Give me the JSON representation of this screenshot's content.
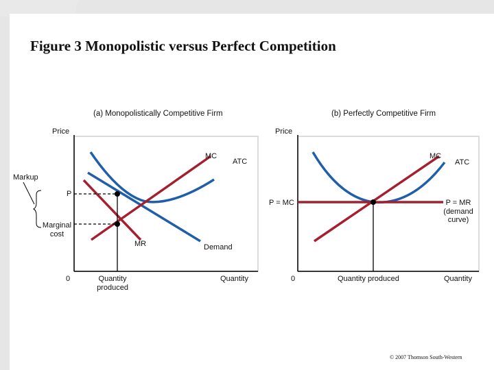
{
  "title": "Figure 3 Monopolistic versus Perfect Competition",
  "panel_a": {
    "heading": "(a) Monopolistically Competitive Firm",
    "y_axis_label": "Price",
    "x_axis_label": "Quantity",
    "origin_label": "0",
    "quantity_label": "Quantity produced",
    "curves": {
      "mc": "MC",
      "atc": "ATC",
      "mr": "MR",
      "demand": "Demand"
    },
    "price_label": "P",
    "markup_label": "Markup",
    "marginal_cost_label": "Marginal cost"
  },
  "panel_b": {
    "heading": "(b) Perfectly Competitive Firm",
    "y_axis_label": "Price",
    "x_axis_label": "Quantity",
    "origin_label": "0",
    "quantity_label": "Quantity produced",
    "curves": {
      "mc": "MC",
      "atc": "ATC"
    },
    "price_label": "P = MC",
    "demand_label": "P = MR (demand curve)"
  },
  "copyright": "© 2007 Thomson South-Western",
  "colors": {
    "blue_curve": "#1f5ea8",
    "red_curve": "#a5202f",
    "axis": "#000000",
    "slide_bg": "#e4e4e4",
    "panel_bg": "#ffffff"
  }
}
